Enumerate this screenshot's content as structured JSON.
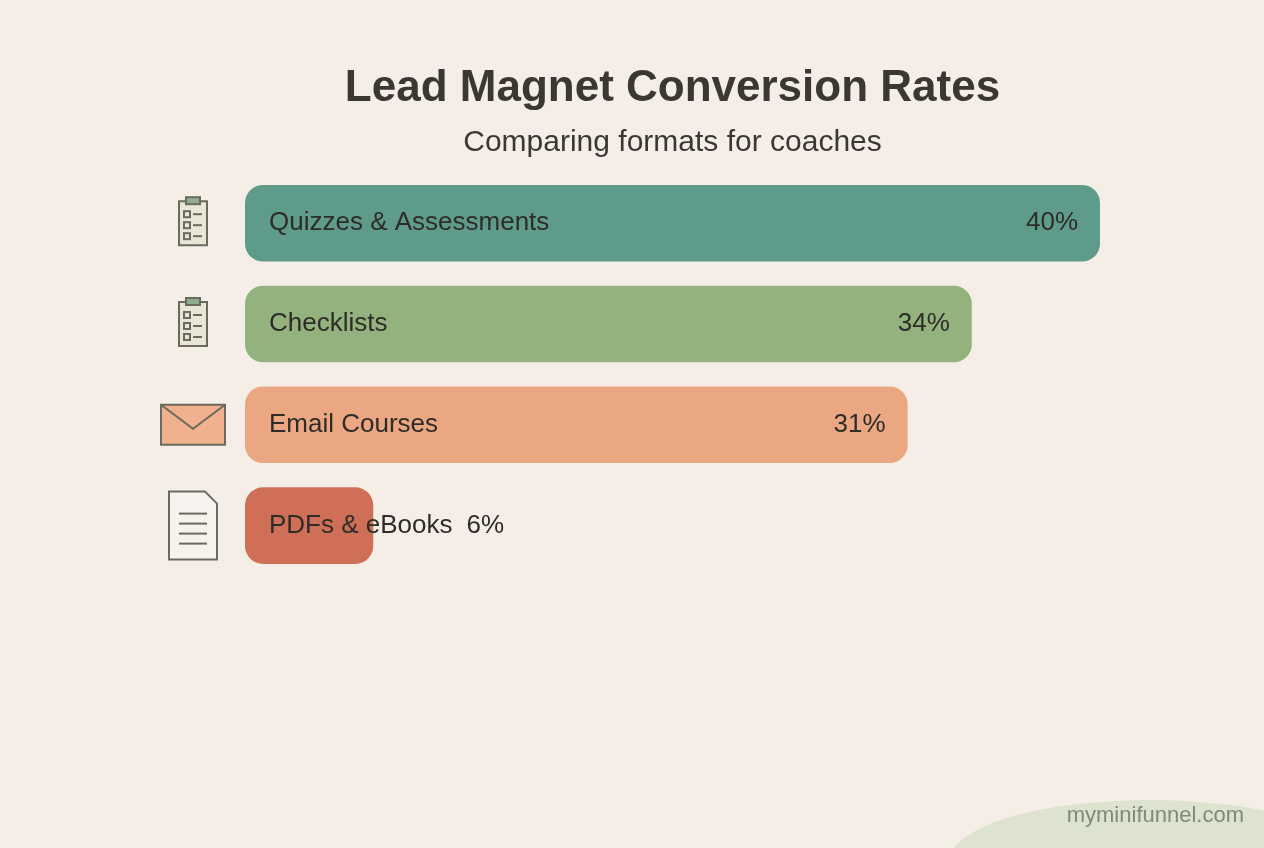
{
  "chart_data": {
    "type": "bar",
    "orientation": "horizontal",
    "title": "Lead Magnet Conversion Rates",
    "subtitle": "Comparing formats for coaches",
    "categories": [
      "Quizzes & Assessments",
      "Checklists",
      "Email Courses",
      "PDFs & eBooks"
    ],
    "values": [
      40,
      34,
      31,
      6
    ],
    "value_labels": [
      "40%",
      "34%",
      "31%",
      "6%"
    ],
    "colors": [
      "#5f9b8b",
      "#93b27d",
      "#eba682",
      "#cf6f57"
    ],
    "xlim": [
      0,
      40
    ],
    "grid": false,
    "tick_labels": false,
    "data_labels": true,
    "annotation": "myminifunnel.com"
  }
}
